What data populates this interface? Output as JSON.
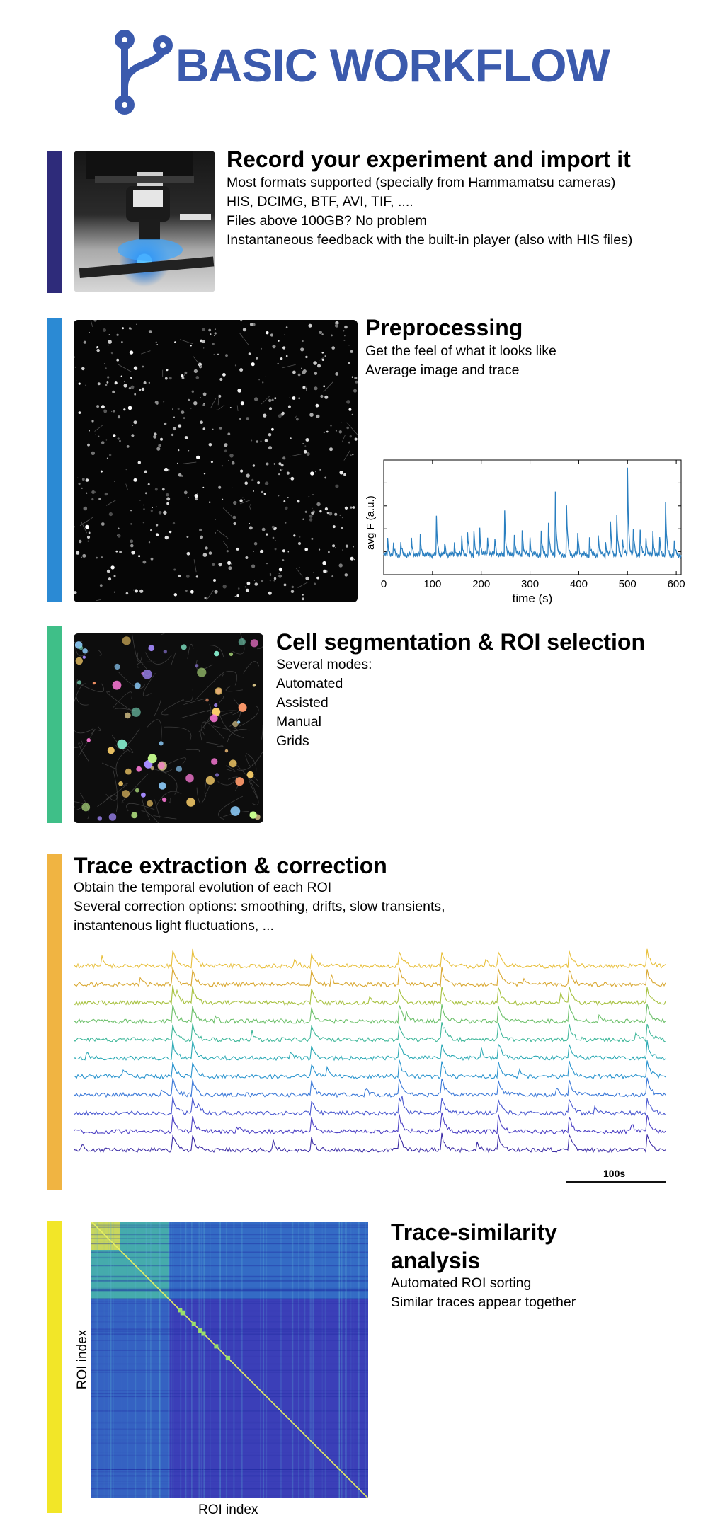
{
  "header": {
    "title": "BASIC WORKFLOW",
    "logo_icon": "branch-logo-icon",
    "color": "#3b5aad"
  },
  "sections": {
    "record": {
      "color": "#2e2b7a",
      "title": "Record your experiment and import it",
      "lines": [
        "Most formats supported (specially from Hammamatsu cameras)",
        "HIS, DCIMG, BTF,  AVI, TIF, ....",
        "Files above 100GB? No problem",
        "Instantaneous feedback with the built-in player (also with HIS files)"
      ]
    },
    "preprocessing": {
      "color": "#2b8ad4",
      "title": "Preprocessing",
      "lines": [
        "Get the feel of what it looks like",
        "Average image and trace"
      ]
    },
    "segmentation": {
      "color": "#3fbf88",
      "title": "Cell segmentation & ROI selection",
      "lines": [
        "Several modes:",
        "Automated",
        "Assisted",
        "Manual",
        "Grids"
      ]
    },
    "trace": {
      "color": "#f0b442",
      "title": "Trace extraction & correction",
      "lines": [
        "Obtain the temporal evolution of each ROI",
        "Several correction options: smoothing, drifts, slow transients,",
        "instantenous light fluctuations, ..."
      ],
      "scalebar_label": "100s",
      "trace_colors": [
        "#e8bf3a",
        "#d9a832",
        "#a6c13e",
        "#6cc06a",
        "#3fb79a",
        "#2aa9b4",
        "#2c95cf",
        "#3a78d8",
        "#4a58d0",
        "#4b3fc4",
        "#3e2ea6"
      ]
    },
    "similarity": {
      "color": "#f2e628",
      "title_line1": "Trace-similarity",
      "title_line2": "analysis",
      "lines": [
        "Automated ROI sorting",
        "Similar traces appear together"
      ],
      "xlabel": "ROI index",
      "ylabel": "ROI index"
    }
  },
  "chart_data": {
    "type": "line",
    "xlabel": "time (s)",
    "ylabel": "avg F (a.u.)",
    "xlim": [
      0,
      610
    ],
    "x_ticks": [
      "0",
      "100",
      "200",
      "300",
      "400",
      "500",
      "600"
    ],
    "series": [
      {
        "color": "#2a7fc0",
        "peaks": [
          [
            8,
            0.18
          ],
          [
            20,
            0.12
          ],
          [
            35,
            0.14
          ],
          [
            57,
            0.18
          ],
          [
            75,
            0.22
          ],
          [
            108,
            0.43
          ],
          [
            125,
            0.14
          ],
          [
            145,
            0.13
          ],
          [
            160,
            0.2
          ],
          [
            172,
            0.26
          ],
          [
            185,
            0.28
          ],
          [
            197,
            0.31
          ],
          [
            213,
            0.22
          ],
          [
            228,
            0.2
          ],
          [
            248,
            0.52
          ],
          [
            268,
            0.25
          ],
          [
            284,
            0.32
          ],
          [
            300,
            0.2
          ],
          [
            323,
            0.27
          ],
          [
            338,
            0.38
          ],
          [
            352,
            0.74
          ],
          [
            375,
            0.57
          ],
          [
            398,
            0.27
          ],
          [
            422,
            0.2
          ],
          [
            440,
            0.23
          ],
          [
            455,
            0.15
          ],
          [
            465,
            0.4
          ],
          [
            478,
            0.44
          ],
          [
            490,
            0.2
          ],
          [
            500,
            1.0
          ],
          [
            512,
            0.3
          ],
          [
            526,
            0.28
          ],
          [
            538,
            0.22
          ],
          [
            552,
            0.26
          ],
          [
            566,
            0.18
          ],
          [
            578,
            0.6
          ],
          [
            596,
            0.14
          ]
        ]
      }
    ]
  }
}
